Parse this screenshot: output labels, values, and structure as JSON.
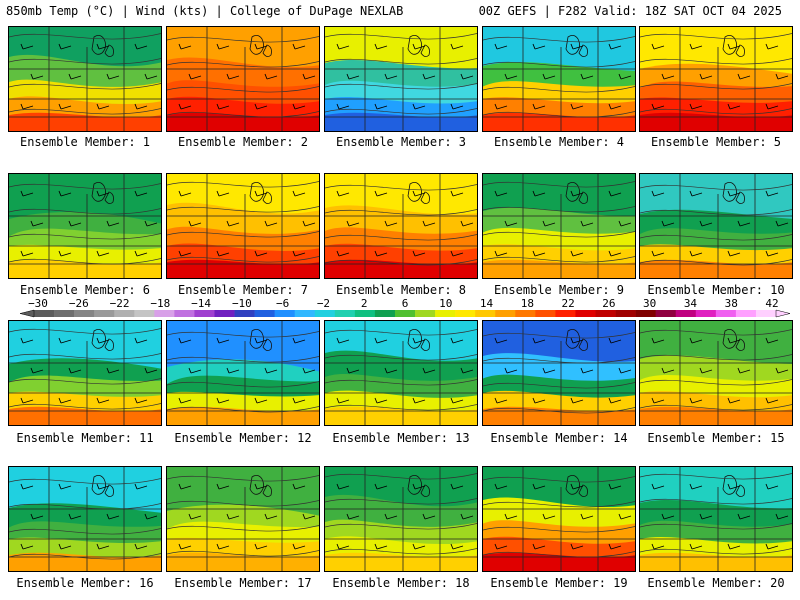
{
  "header": {
    "left": "850mb Temp (°C) | Wind (kts) | College of DuPage NEXLAB",
    "right": "00Z GEFS | F282 Valid: 18Z SAT OCT 04 2025"
  },
  "colorbar": {
    "tick_labels": [
      "−30",
      "−26",
      "−22",
      "−18",
      "−14",
      "−10",
      "−6",
      "−2",
      "2",
      "6",
      "10",
      "14",
      "18",
      "22",
      "26",
      "30",
      "34",
      "38",
      "42"
    ],
    "segment_colors": [
      "#5c5c5c",
      "#6e6e6e",
      "#858585",
      "#9a9a9a",
      "#b0b0b0",
      "#c4c4c4",
      "#d8a0e8",
      "#c070e0",
      "#a040d0",
      "#7020c0",
      "#3040c0",
      "#2060e0",
      "#2090ff",
      "#30b8ff",
      "#20d0e0",
      "#20d0b0",
      "#10c080",
      "#10a050",
      "#50c030",
      "#a0d820",
      "#e8f000",
      "#ffe800",
      "#ffc800",
      "#ffa000",
      "#ff7800",
      "#ff5000",
      "#ff2000",
      "#e00000",
      "#c00000",
      "#a00000",
      "#800000",
      "#900040",
      "#c00080",
      "#e020c0",
      "#f060f0",
      "#ffa0ff",
      "#ffd0ff"
    ]
  },
  "panels": [
    {
      "caption": "Ensemble Member: 1",
      "palette": [
        "#10a060",
        "#60c040",
        "#f0e000",
        "#ffa000",
        "#ff4000"
      ]
    },
    {
      "caption": "Ensemble Member: 2",
      "palette": [
        "#ffa000",
        "#ff7000",
        "#ff5000",
        "#ff2000",
        "#e00000"
      ]
    },
    {
      "caption": "Ensemble Member: 3",
      "palette": [
        "#e8f000",
        "#30c0a0",
        "#40d8e0",
        "#20a0ff",
        "#2060e0"
      ]
    },
    {
      "caption": "Ensemble Member: 4",
      "palette": [
        "#20c8e0",
        "#40c040",
        "#ffd000",
        "#ff8000",
        "#ff3000"
      ]
    },
    {
      "caption": "Ensemble Member: 5",
      "palette": [
        "#ffe800",
        "#ffa000",
        "#ff6000",
        "#ff2000",
        "#e00000"
      ]
    },
    {
      "caption": "Ensemble Member: 6",
      "palette": [
        "#10a050",
        "#40b040",
        "#80d030",
        "#e8f000",
        "#ffd000"
      ]
    },
    {
      "caption": "Ensemble Member: 7",
      "palette": [
        "#ffe800",
        "#ffc000",
        "#ff8000",
        "#ff4000",
        "#e00000"
      ]
    },
    {
      "caption": "Ensemble Member: 8",
      "palette": [
        "#ffe800",
        "#ffc000",
        "#ff8000",
        "#ff4000",
        "#e00000"
      ]
    },
    {
      "caption": "Ensemble Member: 9",
      "palette": [
        "#10a050",
        "#60c040",
        "#e8f000",
        "#ffd000",
        "#ffa000"
      ]
    },
    {
      "caption": "Ensemble Member: 10",
      "palette": [
        "#30c8c0",
        "#10a050",
        "#40b040",
        "#ffd000",
        "#ff8000"
      ]
    },
    {
      "caption": "Ensemble Member: 11",
      "palette": [
        "#20d0e0",
        "#10a050",
        "#80d030",
        "#ffd000",
        "#ff7000"
      ]
    },
    {
      "caption": "Ensemble Member: 12",
      "palette": [
        "#2090ff",
        "#20d0c0",
        "#10a050",
        "#e8f000",
        "#ffa000"
      ]
    },
    {
      "caption": "Ensemble Member: 13",
      "palette": [
        "#20d0e0",
        "#10a050",
        "#40b040",
        "#e8f000",
        "#ffd000"
      ]
    },
    {
      "caption": "Ensemble Member: 14",
      "palette": [
        "#2060e0",
        "#30c0ff",
        "#10a050",
        "#ffd000",
        "#ff8000"
      ]
    },
    {
      "caption": "Ensemble Member: 15",
      "palette": [
        "#40b040",
        "#a0d820",
        "#e8f000",
        "#ffc000",
        "#ff8000"
      ]
    },
    {
      "caption": "Ensemble Member: 16",
      "palette": [
        "#20d0e0",
        "#10a050",
        "#40b040",
        "#a0d820",
        "#ffa000"
      ]
    },
    {
      "caption": "Ensemble Member: 17",
      "palette": [
        "#40b040",
        "#a0d820",
        "#e8f000",
        "#ffd000",
        "#ffb000"
      ]
    },
    {
      "caption": "Ensemble Member: 18",
      "palette": [
        "#10a050",
        "#40b040",
        "#a0d820",
        "#e8f000",
        "#ffd000"
      ]
    },
    {
      "caption": "Ensemble Member: 19",
      "palette": [
        "#10a050",
        "#e8f000",
        "#ffa000",
        "#ff5000",
        "#e00000"
      ]
    },
    {
      "caption": "Ensemble Member: 20",
      "palette": [
        "#20d0c0",
        "#10a050",
        "#40b040",
        "#e8f000",
        "#ffc000"
      ]
    }
  ]
}
